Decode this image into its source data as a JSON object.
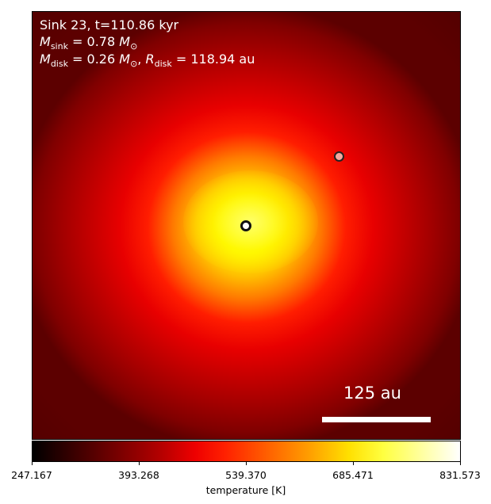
{
  "sink": {
    "label": "Sink 23, t=110.86 kyr"
  },
  "mass_sink": {
    "symbol": "M",
    "sub": "sink",
    "value": "= 0.78",
    "unit_symbol": "M",
    "unit_sub": "⊙"
  },
  "mass_disk": {
    "symbol": "M",
    "sub": "disk",
    "value": "= 0.26",
    "unit_symbol": "M",
    "unit_sub": "⊙",
    "sep": ",",
    "r_symbol": "R",
    "r_sub": "disk",
    "r_value": "= 118.94 au"
  },
  "scalebar": {
    "label": "125 au"
  },
  "colorbar": {
    "ticks": [
      "247.167",
      "393.268",
      "539.370",
      "685.471",
      "831.573"
    ],
    "label": "temperature [K]",
    "range": [
      247.167,
      831.573
    ],
    "colormap": "hot"
  },
  "markers": [
    {
      "name": "central sink",
      "color": "#ffffff",
      "edge": "#111111"
    },
    {
      "name": "companion sink",
      "color": "#f4a7a0",
      "edge": "#222222"
    }
  ]
}
